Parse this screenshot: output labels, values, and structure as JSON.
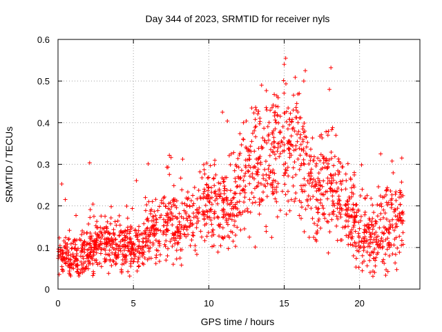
{
  "chart_data": {
    "type": "scatter",
    "title": "Day 344 of 2023, SRMTID for receiver nyls",
    "xlabel": "GPS time / hours",
    "ylabel": "SRMTID / TECUs",
    "xlim": [
      0,
      24
    ],
    "ylim": [
      0,
      0.6
    ],
    "xticks": [
      0,
      5,
      10,
      15,
      20
    ],
    "xtick_labels": [
      "0",
      "5",
      "10",
      "15",
      "20"
    ],
    "yticks": [
      0,
      0.1,
      0.2,
      0.3,
      0.4,
      0.5,
      0.6
    ],
    "ytick_labels": [
      "0",
      "0.1",
      "0.2",
      "0.3",
      "0.4",
      "0.5",
      "0.6"
    ],
    "grid": true,
    "marker": "+",
    "series_color": "#ff0000",
    "series": [
      {
        "name": "SRMTID",
        "x_range": [
          0,
          22.9
        ],
        "trend_x": [
          0,
          1,
          2,
          3,
          4,
          5,
          6,
          7,
          8,
          9,
          10,
          11,
          12,
          13,
          14,
          15,
          16,
          17,
          18,
          19,
          20,
          21,
          22,
          22.9
        ],
        "trend_y": [
          0.09,
          0.075,
          0.09,
          0.115,
          0.105,
          0.1,
          0.13,
          0.16,
          0.155,
          0.165,
          0.2,
          0.195,
          0.22,
          0.29,
          0.3,
          0.35,
          0.33,
          0.23,
          0.24,
          0.19,
          0.14,
          0.13,
          0.15,
          0.18
        ],
        "spread": [
          0.025,
          0.025,
          0.03,
          0.03,
          0.03,
          0.03,
          0.035,
          0.04,
          0.04,
          0.04,
          0.045,
          0.05,
          0.06,
          0.07,
          0.07,
          0.08,
          0.07,
          0.06,
          0.06,
          0.05,
          0.045,
          0.045,
          0.05,
          0.05
        ],
        "highlights": [
          [
            15.1,
            0.555
          ],
          [
            15.0,
            0.54
          ],
          [
            16.4,
            0.525
          ],
          [
            18.1,
            0.532
          ],
          [
            13.5,
            0.49
          ],
          [
            16.3,
            0.5
          ],
          [
            18.0,
            0.48
          ],
          [
            12.3,
            0.4
          ],
          [
            21.4,
            0.325
          ],
          [
            22.8,
            0.315
          ],
          [
            14.6,
            0.46
          ],
          [
            16.0,
            0.47
          ],
          [
            17.9,
            0.37
          ],
          [
            21.0,
            0.04
          ],
          [
            0.8,
            0.035
          ]
        ],
        "point_count": 1800
      }
    ]
  }
}
